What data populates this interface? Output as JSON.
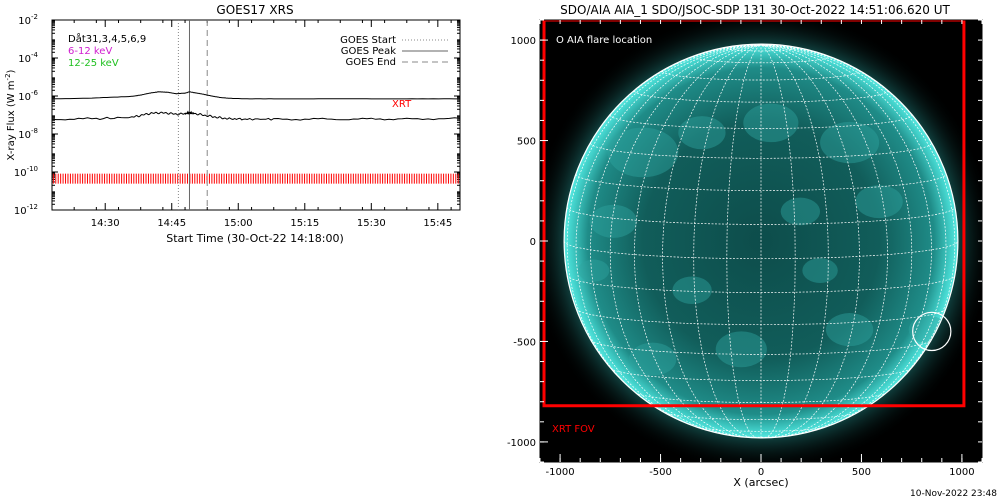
{
  "chart_data": [
    {
      "type": "line",
      "title": "GOES17 XRS",
      "xlabel": "Start Time (30-Oct-22 14:18:00)",
      "ylabel": "X-ray Flux (W m",
      "ylabel_sup": "-2",
      "ylabel_close": ")",
      "x_unit": "minutes after 14:18:00",
      "xlim": [
        0,
        92
      ],
      "ylim_log10": [
        -12,
        -2
      ],
      "y_log": true,
      "xticks": [
        {
          "value": 12,
          "label": "14:30"
        },
        {
          "value": 27,
          "label": "14:45"
        },
        {
          "value": 42,
          "label": "15:00"
        },
        {
          "value": 57,
          "label": "15:15"
        },
        {
          "value": 72,
          "label": "15:30"
        },
        {
          "value": 87,
          "label": "15:45"
        }
      ],
      "yticks": [
        {
          "exp": -12,
          "label": "10",
          "sup": "-12"
        },
        {
          "exp": -10,
          "label": "10",
          "sup": "-10"
        },
        {
          "exp": -8,
          "label": "10",
          "sup": "-8"
        },
        {
          "exp": -6,
          "label": "10",
          "sup": "-6"
        },
        {
          "exp": -4,
          "label": "10",
          "sup": "-4"
        },
        {
          "exp": -2,
          "label": "10",
          "sup": "-2"
        }
      ],
      "legend_left": [
        {
          "text": "Dåt31,3,4,5,6,9",
          "color": "#000000"
        },
        {
          "text": "6-12 keV",
          "color": "#d020d0"
        },
        {
          "text": "12-25 keV",
          "color": "#20c020"
        }
      ],
      "legend_right": [
        {
          "text": "GOES Start",
          "style": "dotted"
        },
        {
          "text": "GOES Peak",
          "style": "solid"
        },
        {
          "text": "GOES End",
          "style": "dashed"
        }
      ],
      "series": [
        {
          "name": "",
          "color": "#000000",
          "x": [
            0,
            10,
            18,
            20,
            22,
            24,
            26,
            28,
            30,
            31,
            32,
            34,
            36,
            38,
            40,
            44,
            50,
            60,
            70,
            80,
            92
          ],
          "log10_flux": [
            -6.15,
            -6.1,
            -6.02,
            -5.95,
            -5.85,
            -5.78,
            -5.8,
            -5.88,
            -5.85,
            -5.78,
            -5.82,
            -5.9,
            -6.0,
            -6.08,
            -6.12,
            -6.15,
            -6.15,
            -6.15,
            -6.15,
            -6.15,
            -6.15
          ]
        },
        {
          "name": "",
          "color": "#000000",
          "x": [
            0,
            10,
            18,
            20,
            22,
            24,
            26,
            28,
            30,
            31,
            32,
            34,
            36,
            38,
            40,
            44,
            50,
            60,
            70,
            80,
            92
          ],
          "log10_flux": [
            -7.22,
            -7.2,
            -7.12,
            -7.02,
            -6.92,
            -6.88,
            -6.9,
            -6.96,
            -6.93,
            -6.88,
            -6.92,
            -7.0,
            -7.08,
            -7.15,
            -7.2,
            -7.22,
            -7.22,
            -7.22,
            -7.22,
            -7.2,
            -7.18
          ]
        }
      ],
      "vlines": [
        {
          "x": 28.5,
          "style": "dotted",
          "label": "GOES Start"
        },
        {
          "x": 31,
          "style": "solid",
          "label": "GOES Peak"
        },
        {
          "x": 35,
          "style": "dashed",
          "label": "GOES End"
        }
      ],
      "xrt_label": "XRT",
      "xrt_color": "#ff0000",
      "xrt_coverage_log10_y": -10.35
    },
    {
      "type": "image",
      "title": "SDO/AIA AIA_1 SDO/JSOC-SDP 131 30-Oct-2022 14:51:06.620 UT",
      "xlabel": "X (arcsec)",
      "ylabel": "",
      "xlim": [
        -1100,
        1100
      ],
      "ylim": [
        -1100,
        1100
      ],
      "xticks": [
        -1000,
        -500,
        0,
        500,
        1000
      ],
      "yticks": [
        -1000,
        -500,
        0,
        500,
        1000
      ],
      "xtick_labels": [
        "-1000",
        "-500",
        "0",
        "500",
        "1000"
      ],
      "ytick_labels": [
        "-1000",
        "-500",
        "0",
        "500",
        "1000"
      ],
      "solar_radius_arcsec": 980,
      "flare_location": {
        "x": 850,
        "y": -450,
        "radius": 95
      },
      "flare_legend": "O AIA flare location",
      "xrt_fov": {
        "x0": -1080,
        "x1": 1010,
        "y0": -820,
        "y1": 1100,
        "label": "XRT FOV"
      },
      "colors": {
        "disk": "#2aa3a0",
        "limb": "#3fd2cc",
        "grid": "#ffffff",
        "fov": "#ff0000"
      }
    }
  ],
  "footer_timestamp": "10-Nov-2022 23:48"
}
